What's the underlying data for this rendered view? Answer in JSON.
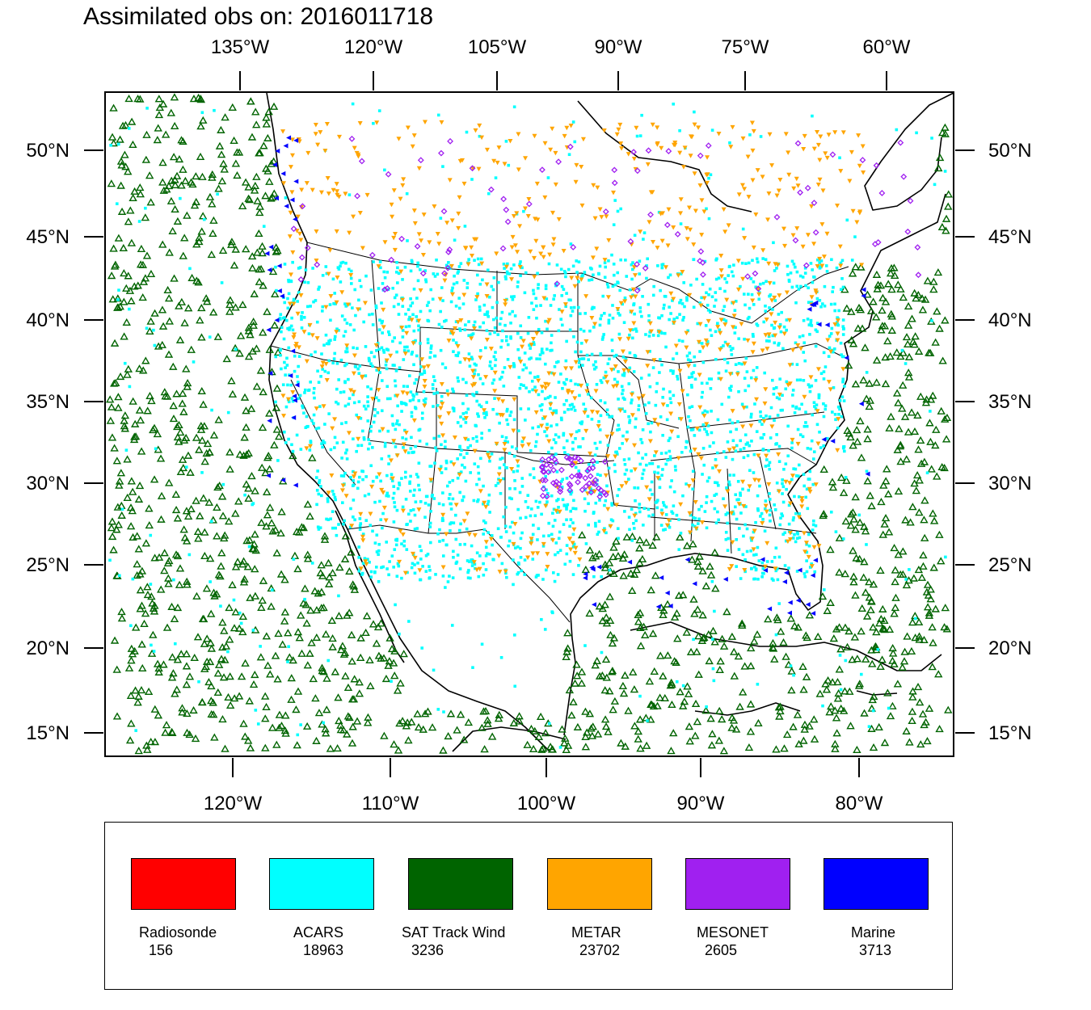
{
  "title": "Assimilated obs on: 2016011718",
  "top_axis_labels": [
    "135°W",
    "120°W",
    "105°W",
    "90°W",
    "75°W",
    "60°W"
  ],
  "bottom_axis_labels": [
    "120°W",
    "110°W",
    "100°W",
    "90°W",
    "80°W"
  ],
  "left_axis_labels": [
    "50°N",
    "45°N",
    "40°N",
    "35°N",
    "30°N",
    "25°N",
    "20°N",
    "15°N"
  ],
  "right_axis_labels": [
    "50°N",
    "45°N",
    "40°N",
    "35°N",
    "30°N",
    "25°N",
    "20°N",
    "15°N"
  ],
  "legend": [
    {
      "name": "Radiosonde",
      "count": "156",
      "color": "#ff0000",
      "marker": "circle"
    },
    {
      "name": "ACARS",
      "count": "18963",
      "color": "#00ffff",
      "marker": "square"
    },
    {
      "name": "SAT Track Wind",
      "count": "3236",
      "color": "#006400",
      "marker": "triangle-up-open"
    },
    {
      "name": "METAR",
      "count": "23702",
      "color": "#ffa500",
      "marker": "triangle-down"
    },
    {
      "name": "MESONET",
      "count": "2605",
      "color": "#a020f0",
      "marker": "diamond"
    },
    {
      "name": "Marine",
      "count": "3713",
      "color": "#0000ff",
      "marker": "triangle-left"
    }
  ],
  "map": {
    "region": "CONUS / North America",
    "lon_range": [
      -128,
      -72
    ],
    "lat_range": [
      14,
      52
    ],
    "coastline_color": "#000000"
  }
}
